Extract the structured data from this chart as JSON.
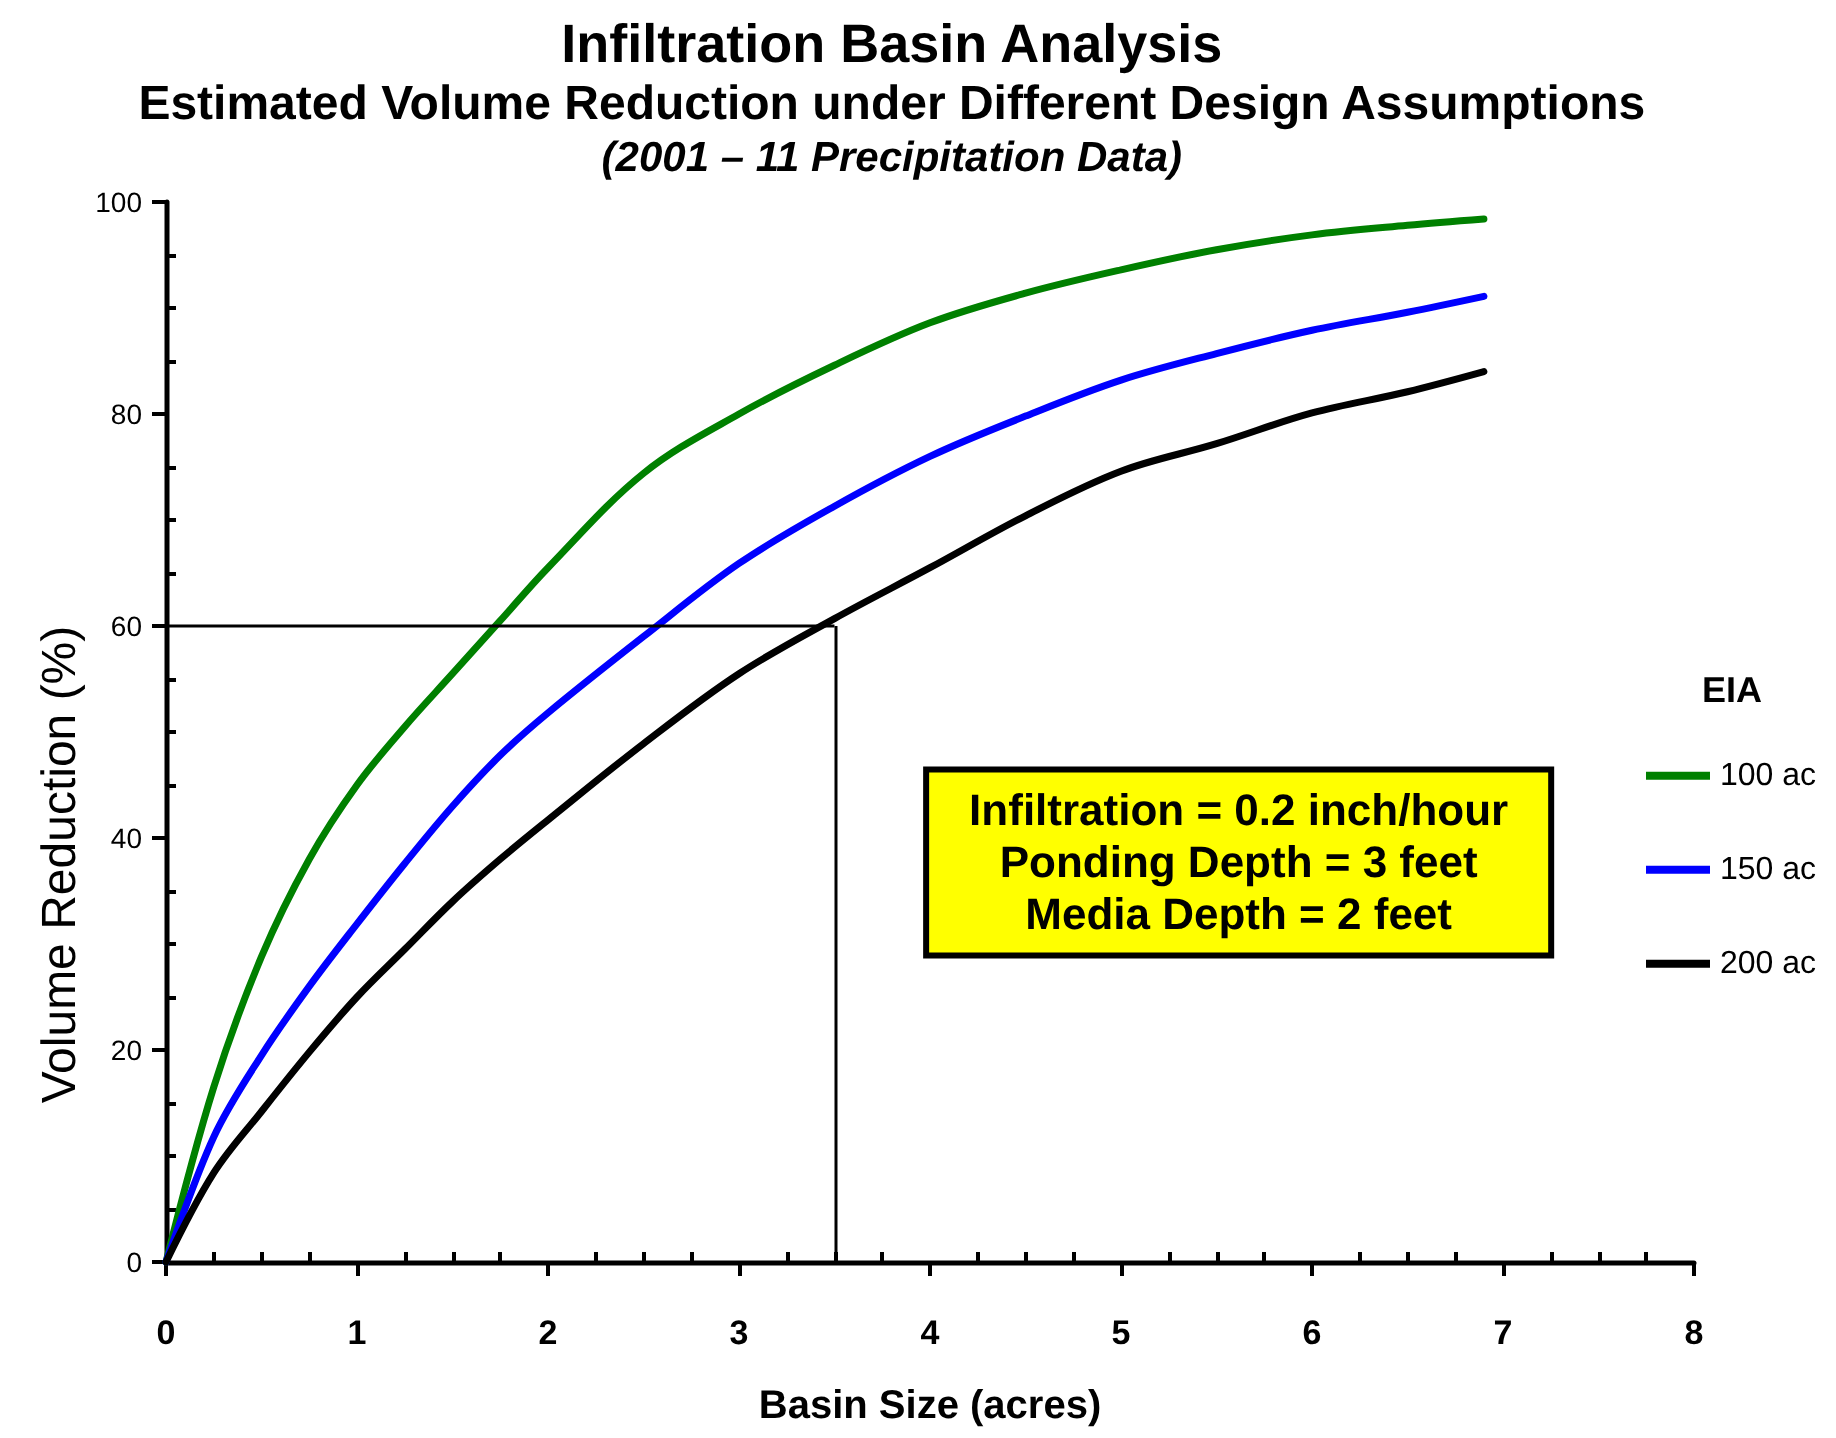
{
  "chart_data": {
    "type": "line",
    "title": "Infiltration Basin Analysis",
    "subtitle": "Estimated Volume Reduction under Different Design Assumptions",
    "annotations": [
      "(2001 – 11 Precipitation Data)",
      "Infiltration = 0.2 inch/hour\nPonding Depth = 3 feet\nMedia Depth = 2 feet"
    ],
    "xlabel": "Basin Size (acres)",
    "ylabel": "Volume Reduction (%)",
    "legend_title": "EIA",
    "x": [
      0,
      0.25,
      0.5,
      0.75,
      1,
      1.25,
      1.5,
      1.75,
      2,
      2.5,
      3,
      3.5,
      4,
      4.5,
      5,
      5.5,
      6,
      6.5,
      6.9
    ],
    "series": [
      {
        "name": "100 ac",
        "color": "#008000",
        "values": [
          0,
          16.5,
          28.8,
          38,
          45,
          50.5,
          55.5,
          60.5,
          65.5,
          74.4,
          80,
          84.6,
          88.6,
          91.4,
          93.6,
          95.5,
          96.9,
          97.8,
          98.4
        ]
      },
      {
        "name": "150 ac",
        "color": "#0000ff",
        "values": [
          0,
          11.8,
          19.5,
          26,
          31.9,
          37.6,
          43,
          47.8,
          51.8,
          59,
          65.9,
          71.3,
          76,
          79.8,
          83.2,
          85.7,
          87.9,
          89.6,
          91.1
        ]
      },
      {
        "name": "200 ac",
        "color": "#000000",
        "values": [
          0,
          8.4,
          14.2,
          19.8,
          25,
          29.5,
          34,
          38,
          41.7,
          48.9,
          55.5,
          60.7,
          65.5,
          70.4,
          74.6,
          77.2,
          80.1,
          82.1,
          84
        ]
      }
    ],
    "xlim": [
      0,
      8
    ],
    "ylim": [
      0,
      100
    ],
    "xticks": [
      0,
      {
        "value": 0.25,
        "label": null
      },
      {
        "value": 0.5,
        "label": null
      },
      {
        "value": 0.75,
        "label": null
      },
      1,
      {
        "value": 1.25,
        "label": null
      },
      {
        "value": 1.5,
        "label": null
      },
      {
        "value": 1.75,
        "label": null
      },
      2,
      {
        "value": 2.25,
        "label": null
      },
      {
        "value": 2.5,
        "label": null
      },
      {
        "value": 2.75,
        "label": null
      },
      3,
      {
        "value": 3.25,
        "label": null
      },
      {
        "value": 3.5,
        "label": null
      },
      {
        "value": 3.75,
        "label": null
      },
      4,
      {
        "value": 4.25,
        "label": null
      },
      {
        "value": 4.5,
        "label": null
      },
      {
        "value": 4.75,
        "label": null
      },
      5,
      {
        "value": 5.25,
        "label": null
      },
      {
        "value": 5.5,
        "label": null
      },
      {
        "value": 5.75,
        "label": null
      },
      6,
      {
        "value": 6.25,
        "label": null
      },
      {
        "value": 6.5,
        "label": null
      },
      {
        "value": 6.75,
        "label": null
      },
      7,
      {
        "value": 7.25,
        "label": null
      },
      {
        "value": 7.5,
        "label": null
      },
      {
        "value": 7.75,
        "label": null
      },
      8
    ],
    "yticks": [
      0,
      {
        "value": 5,
        "label": null
      },
      {
        "value": 10,
        "label": null
      },
      {
        "value": 15,
        "label": null
      },
      20,
      {
        "value": 25,
        "label": null
      },
      {
        "value": 30,
        "label": null
      },
      {
        "value": 35,
        "label": null
      },
      40,
      {
        "value": 45,
        "label": null
      },
      {
        "value": 50,
        "label": null
      },
      {
        "value": 55,
        "label": null
      },
      60,
      {
        "value": 65,
        "label": null
      },
      {
        "value": 70,
        "label": null
      },
      {
        "value": 75,
        "label": null
      },
      80,
      {
        "value": 85,
        "label": null
      },
      {
        "value": 90,
        "label": null
      },
      {
        "value": 95,
        "label": null
      },
      100
    ],
    "ref_lines": [
      {
        "axis": "y",
        "value": 60,
        "color": "#000000"
      },
      {
        "axis": "x",
        "value": 3.5,
        "color": "#000000"
      }
    ],
    "grid": false,
    "legend": "right",
    "marker": "none",
    "line_style": "solid"
  }
}
